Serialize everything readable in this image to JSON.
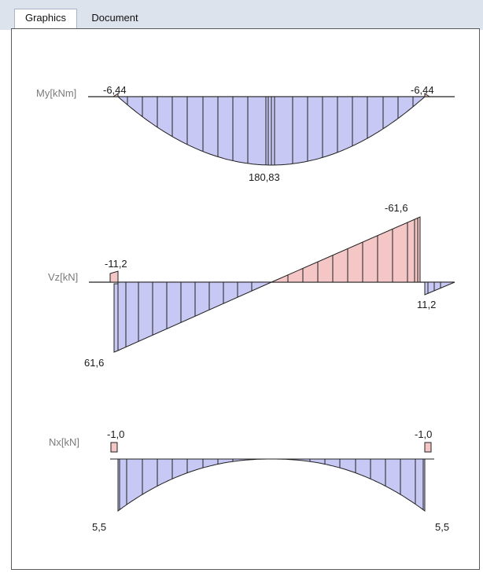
{
  "tabs": {
    "graphics": "Graphics",
    "document": "Document"
  },
  "colors": {
    "negative_fill": "#c8c8f5",
    "positive_fill": "#f5c6c6",
    "stroke": "#202020"
  },
  "diagrams": {
    "my": {
      "label": "My[kNm]",
      "left_value": "-6,44",
      "right_value": "-6,44",
      "center_value": "180,83"
    },
    "vz": {
      "label": "Vz[kN]",
      "left_top_value": "-11,2",
      "left_bottom_value": "61,6",
      "right_top_value": "-61,6",
      "right_bottom_value": "11,2"
    },
    "nx": {
      "label": "Nx[kN]",
      "left_top_value": "-1,0",
      "right_top_value": "-1,0",
      "left_bottom_value": "5,5",
      "right_bottom_value": "5,5"
    }
  }
}
